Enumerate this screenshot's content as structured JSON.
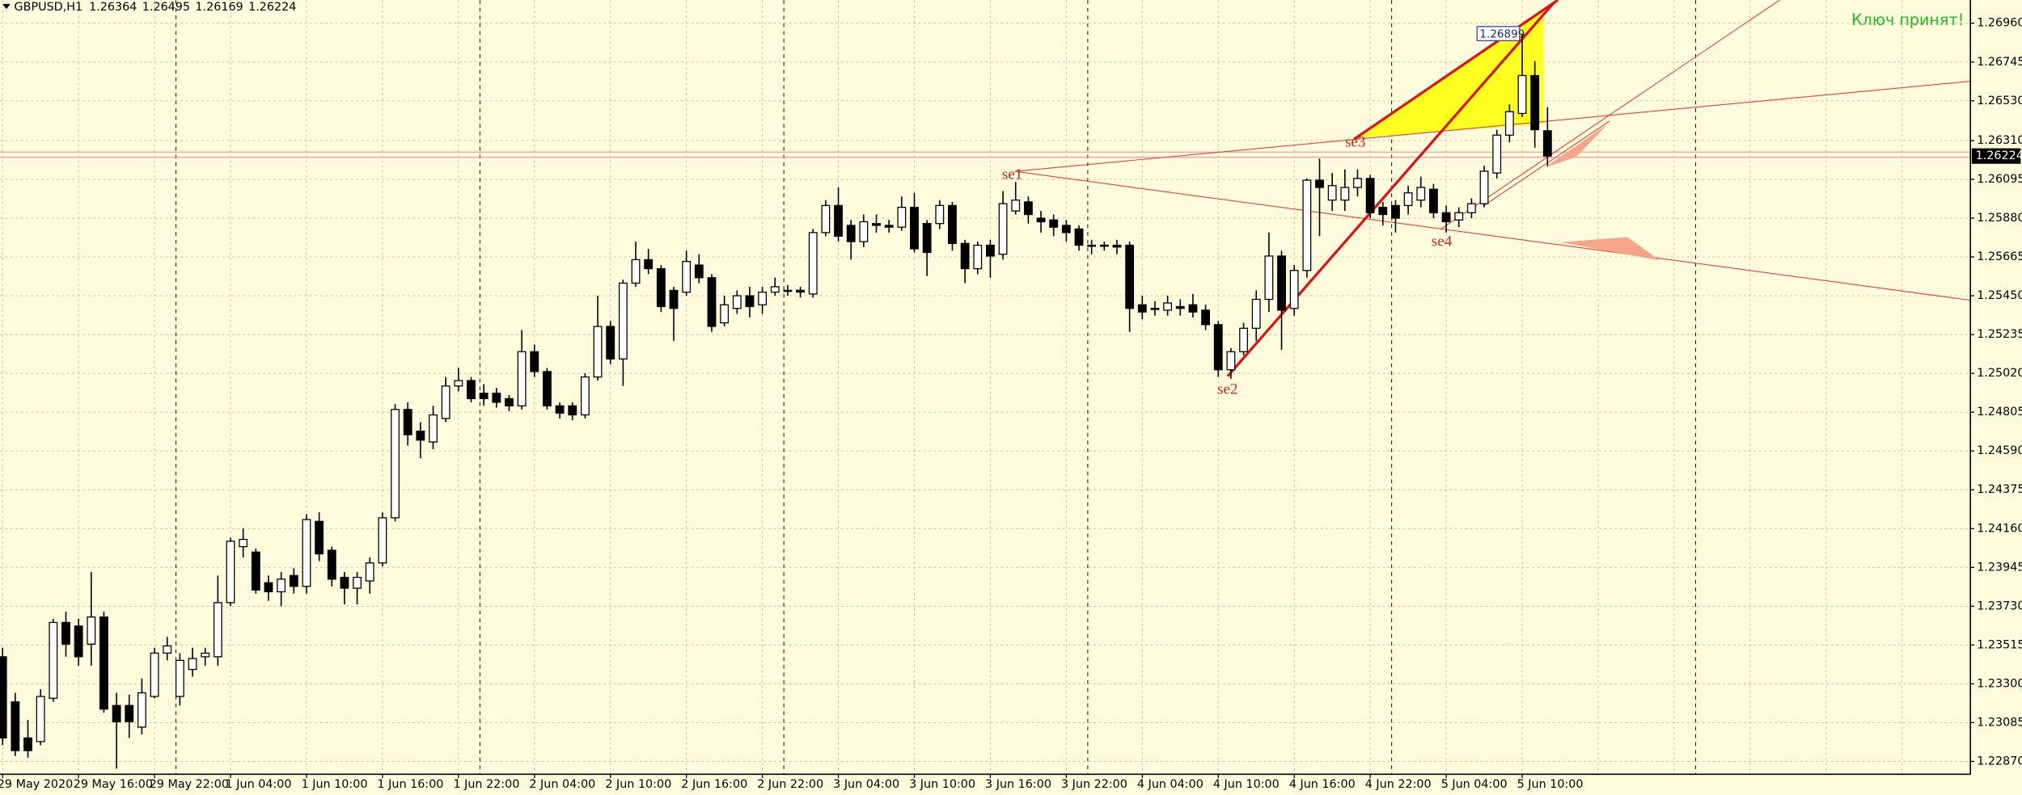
{
  "chart_data": {
    "type": "candlestick",
    "title": "GBPUSD,H1",
    "status_text": "Ключ принят!",
    "annotations": [
      "se1",
      "se2",
      "se3",
      "se4"
    ],
    "up_color": "#ffffff",
    "down_color": "#000000",
    "grid": true,
    "categories": [
      "29 May 2020",
      null,
      null,
      null,
      null,
      null,
      "29 May 16:00",
      null,
      null,
      null,
      null,
      null,
      "29 May 22:00",
      null,
      null,
      null,
      null,
      null,
      "1 Jun 04:00",
      null,
      null,
      null,
      null,
      null,
      "1 Jun 10:00",
      null,
      null,
      null,
      null,
      null,
      "1 Jun 16:00",
      null,
      null,
      null,
      null,
      null,
      "1 Jun 22:00",
      null,
      null,
      null,
      null,
      null,
      "2 Jun 04:00",
      null,
      null,
      null,
      null,
      null,
      "2 Jun 10:00",
      null,
      null,
      null,
      null,
      null,
      "2 Jun 16:00",
      null,
      null,
      null,
      null,
      null,
      "2 Jun 22:00",
      null,
      null,
      null,
      null,
      null,
      "3 Jun 04:00",
      null,
      null,
      null,
      null,
      null,
      "3 Jun 10:00",
      null,
      null,
      null,
      null,
      null,
      "3 Jun 16:00",
      null,
      null,
      null,
      null,
      null,
      "3 Jun 22:00",
      null,
      null,
      null,
      null,
      null,
      "4 Jun 04:00",
      null,
      null,
      null,
      null,
      null,
      "4 Jun 10:00",
      null,
      null,
      null,
      null,
      null,
      "4 Jun 16:00",
      null,
      null,
      null,
      null,
      null,
      "4 Jun 22:00",
      null,
      null,
      null,
      null,
      null,
      "5 Jun 04:00",
      null,
      null,
      null,
      null,
      null,
      "5 Jun 10:00",
      null,
      null
    ],
    "open": [
      1.2345,
      1.232,
      1.23,
      1.2298,
      1.2322,
      1.2364,
      1.2362,
      1.2352,
      1.2367,
      1.2318,
      1.2318,
      1.2306,
      1.2323,
      1.2347,
      1.2323,
      1.2338,
      1.2345,
      1.2345,
      1.2375,
      1.2406,
      1.2403,
      1.2386,
      1.2381,
      1.239,
      1.2384,
      1.242,
      1.2404,
      1.2389,
      1.2383,
      1.2387,
      1.2397,
      1.2422,
      1.2482,
      1.247,
      1.2464,
      1.2477,
      1.2495,
      1.2498,
      1.2491,
      1.2491,
      1.2488,
      1.2484,
      1.2514,
      1.2503,
      1.2484,
      1.2484,
      1.2479,
      1.25,
      1.2528,
      1.251,
      1.2552,
      1.2565,
      1.256,
      1.2548,
      1.2547,
      1.2562,
      1.2555,
      1.253,
      1.2538,
      1.2545,
      1.254,
      1.2547,
      1.2548,
      1.2548,
      1.2546,
      1.258,
      1.2595,
      1.2584,
      1.2575,
      1.2585,
      1.2584,
      1.2583,
      1.2594,
      1.2585,
      1.2585,
      1.2595,
      1.2574,
      1.256,
      1.2573,
      1.2568,
      1.2592,
      1.2597,
      1.2588,
      1.2587,
      1.2584,
      1.2582,
      1.2573,
      1.2573,
      1.2573,
      1.2573,
      1.254,
      1.2538,
      1.2537,
      1.2539,
      1.254,
      1.2537,
      1.2529,
      1.2504,
      1.2514,
      1.2527,
      1.2543,
      1.2567,
      1.2538,
      1.2559,
      1.2609,
      1.2598,
      1.2598,
      1.2605,
      1.261,
      1.2594,
      1.2595,
      1.2595,
      1.2598,
      1.2604,
      1.2591,
      1.2587,
      1.2591,
      1.2596,
      1.2613,
      1.2634,
      1.2646,
      1.2667,
      1.26364
    ],
    "high": [
      1.235,
      1.2325,
      1.231,
      1.2327,
      1.2366,
      1.237,
      1.2366,
      1.2392,
      1.237,
      1.2325,
      1.2324,
      1.2333,
      1.235,
      1.2356,
      1.2347,
      1.235,
      1.235,
      1.239,
      1.2411,
      1.2416,
      1.2405,
      1.239,
      1.2392,
      1.2394,
      1.2424,
      1.2425,
      1.2406,
      1.2392,
      1.2392,
      1.24,
      1.2425,
      1.2485,
      1.2486,
      1.2475,
      1.2484,
      1.25,
      1.2505,
      1.25,
      1.2496,
      1.2494,
      1.249,
      1.2526,
      1.2518,
      1.2505,
      1.2486,
      1.2486,
      1.2502,
      1.2545,
      1.2531,
      1.2554,
      1.2575,
      1.2571,
      1.2562,
      1.255,
      1.257,
      1.2568,
      1.2557,
      1.2545,
      1.2548,
      1.255,
      1.255,
      1.2555,
      1.2551,
      1.255,
      1.2582,
      1.2598,
      1.2605,
      1.2587,
      1.259,
      1.259,
      1.2587,
      1.26,
      1.2602,
      1.2587,
      1.2598,
      1.2597,
      1.2576,
      1.2575,
      1.2576,
      1.2603,
      1.2608,
      1.26,
      1.2592,
      1.259,
      1.2587,
      1.2584,
      1.2576,
      1.2575,
      1.2576,
      1.2575,
      1.2545,
      1.2542,
      1.2545,
      1.2543,
      1.2546,
      1.254,
      1.2531,
      1.2516,
      1.253,
      1.2548,
      1.258,
      1.257,
      1.2562,
      1.261,
      1.2621,
      1.2613,
      1.2615,
      1.2615,
      1.2612,
      1.2597,
      1.2598,
      1.2606,
      1.2611,
      1.2607,
      1.2595,
      1.2594,
      1.2599,
      1.2617,
      1.2637,
      1.2651,
      1.26899,
      1.2675,
      1.26495
    ],
    "low": [
      1.2296,
      1.229,
      1.2289,
      1.2296,
      1.232,
      1.2345,
      1.234,
      1.234,
      1.2314,
      1.2283,
      1.23,
      1.2302,
      1.2322,
      1.2343,
      1.2318,
      1.2334,
      1.234,
      1.234,
      1.2373,
      1.24,
      1.238,
      1.2376,
      1.2373,
      1.238,
      1.238,
      1.2398,
      1.2384,
      1.2374,
      1.2374,
      1.238,
      1.2395,
      1.242,
      1.2462,
      1.2455,
      1.246,
      1.2475,
      1.2492,
      1.2486,
      1.2484,
      1.2483,
      1.2481,
      1.2482,
      1.25,
      1.2482,
      1.2477,
      1.2476,
      1.2477,
      1.2498,
      1.2507,
      1.2495,
      1.255,
      1.2557,
      1.2536,
      1.252,
      1.2545,
      1.2552,
      1.2525,
      1.2528,
      1.2535,
      1.2533,
      1.2535,
      1.2545,
      1.2545,
      1.2544,
      1.2544,
      1.2578,
      1.2575,
      1.2565,
      1.2572,
      1.258,
      1.258,
      1.2581,
      1.2569,
      1.2556,
      1.2582,
      1.257,
      1.2552,
      1.2557,
      1.2555,
      1.2565,
      1.259,
      1.2585,
      1.258,
      1.2578,
      1.2575,
      1.257,
      1.2568,
      1.257,
      1.2568,
      1.2525,
      1.2532,
      1.2534,
      1.2534,
      1.2534,
      1.2533,
      1.2526,
      1.25,
      1.2499,
      1.2512,
      1.252,
      1.2536,
      1.2515,
      1.2534,
      1.2555,
      1.2578,
      1.2592,
      1.2592,
      1.26,
      1.2588,
      1.2584,
      1.258,
      1.259,
      1.2594,
      1.2588,
      1.258,
      1.2583,
      1.2588,
      1.2594,
      1.261,
      1.263,
      1.2644,
      1.2627,
      1.26169
    ],
    "close": [
      1.23,
      1.2293,
      1.2293,
      1.2323,
      1.2364,
      1.2352,
      1.2345,
      1.2367,
      1.2316,
      1.2309,
      1.2309,
      1.2325,
      1.2347,
      1.2351,
      1.2343,
      1.2344,
      1.2347,
      1.2375,
      1.2409,
      1.241,
      1.2382,
      1.2381,
      1.2388,
      1.2384,
      1.2421,
      1.2402,
      1.2388,
      1.2383,
      1.2389,
      1.2397,
      1.2422,
      1.2482,
      1.2468,
      1.2465,
      1.2479,
      1.2495,
      1.2498,
      1.2488,
      1.2488,
      1.2486,
      1.2484,
      1.2514,
      1.2503,
      1.2484,
      1.248,
      1.2479,
      1.25,
      1.2528,
      1.251,
      1.2552,
      1.2565,
      1.256,
      1.2539,
      1.2538,
      1.2564,
      1.2555,
      1.2528,
      1.254,
      1.2545,
      1.2539,
      1.2547,
      1.255,
      1.2548,
      1.2547,
      1.258,
      1.2595,
      1.2578,
      1.2575,
      1.2586,
      1.2584,
      1.2583,
      1.2594,
      1.2571,
      1.2569,
      1.2595,
      1.2574,
      1.256,
      1.2573,
      1.2567,
      1.2596,
      1.2598,
      1.259,
      1.2586,
      1.2583,
      1.258,
      1.2573,
      1.2573,
      1.2573,
      1.2572,
      1.2538,
      1.2536,
      1.2538,
      1.2541,
      1.2538,
      1.2536,
      1.2529,
      1.2504,
      1.2514,
      1.2527,
      1.2543,
      1.2567,
      1.2537,
      1.2559,
      1.2609,
      1.2605,
      1.2606,
      1.2605,
      1.261,
      1.2591,
      1.259,
      1.2588,
      1.2602,
      1.2605,
      1.2591,
      1.2586,
      1.2591,
      1.2596,
      1.2614,
      1.2634,
      1.2647,
      1.2667,
      1.2637,
      1.26224
    ],
    "ylim": [
      1.22806,
      1.27088
    ],
    "yticks": [
      {
        "value": 1.2696,
        "label": "1.26960"
      },
      {
        "value": 1.26745,
        "label": "1.26745"
      },
      {
        "value": 1.2653,
        "label": "1.26530"
      },
      {
        "value": 1.2631,
        "label": "1.26310"
      },
      {
        "value": 1.26095,
        "label": "1.26095"
      },
      {
        "value": 1.2588,
        "label": "1.25880"
      },
      {
        "value": 1.25665,
        "label": "1.25665"
      },
      {
        "value": 1.2545,
        "label": "1.25450"
      },
      {
        "value": 1.25235,
        "label": "1.25235"
      },
      {
        "value": 1.2502,
        "label": "1.25020"
      },
      {
        "value": 1.24805,
        "label": "1.24805"
      },
      {
        "value": 1.2459,
        "label": "1.24590"
      },
      {
        "value": 1.24375,
        "label": "1.24375"
      },
      {
        "value": 1.2416,
        "label": "1.24160"
      },
      {
        "value": 1.23945,
        "label": "1.23945"
      },
      {
        "value": 1.2373,
        "label": "1.23730"
      },
      {
        "value": 1.23515,
        "label": "1.23515"
      },
      {
        "value": 1.233,
        "label": "1.23300"
      },
      {
        "value": 1.23085,
        "label": "1.23085"
      },
      {
        "value": 1.2287,
        "label": "1.22870"
      }
    ]
  }
}
